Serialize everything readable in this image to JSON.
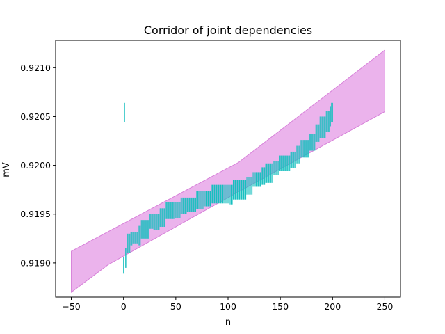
{
  "chart_data": {
    "type": "area",
    "title": "Corridor of joint dependencies",
    "xlabel": "n",
    "ylabel": "mV",
    "xlim": [
      -65,
      265
    ],
    "ylim": [
      0.91865,
      0.92128
    ],
    "xticks": [
      -50,
      0,
      50,
      100,
      150,
      200,
      250
    ],
    "yticks": [
      0.919,
      0.9195,
      0.92,
      0.9205,
      0.921
    ],
    "ytick_labels": [
      "0.9190",
      "0.9195",
      "0.9200",
      "0.9205",
      "0.9210"
    ],
    "grid": false,
    "corridor": {
      "color": "#ebb3ec",
      "edge_color": "#d67fd8",
      "upper": [
        [
          -50,
          0.91912
        ],
        [
          110,
          0.92003
        ],
        [
          250,
          0.92118
        ]
      ],
      "lower": [
        [
          -50,
          0.9187
        ],
        [
          -15,
          0.91898
        ],
        [
          100,
          0.91967
        ],
        [
          250,
          0.92055
        ]
      ]
    },
    "segments": {
      "color": "#17bfbf",
      "x_start": 0,
      "x_end": 200,
      "step": 1,
      "steps": [
        [
          0,
          1,
          0.91889,
          0.91906
        ],
        [
          2,
          4,
          0.91895,
          0.91915
        ],
        [
          4,
          7,
          0.9191,
          0.9193
        ],
        [
          7,
          9,
          0.91918,
          0.91932
        ],
        [
          9,
          14,
          0.9192,
          0.91932
        ],
        [
          14,
          17,
          0.91918,
          0.91938
        ],
        [
          17,
          25,
          0.91925,
          0.91944
        ],
        [
          25,
          29,
          0.91935,
          0.9195
        ],
        [
          29,
          35,
          0.91934,
          0.9195
        ],
        [
          35,
          40,
          0.91937,
          0.91956
        ],
        [
          40,
          46,
          0.91945,
          0.91962
        ],
        [
          46,
          50,
          0.91945,
          0.91962
        ],
        [
          50,
          55,
          0.91946,
          0.91962
        ],
        [
          55,
          61,
          0.9195,
          0.91967
        ],
        [
          61,
          70,
          0.91952,
          0.91967
        ],
        [
          70,
          77,
          0.91955,
          0.91974
        ],
        [
          77,
          84,
          0.91958,
          0.91974
        ],
        [
          84,
          102,
          0.91961,
          0.9198
        ],
        [
          102,
          105,
          0.9196,
          0.9198
        ],
        [
          105,
          118,
          0.91965,
          0.91985
        ],
        [
          118,
          124,
          0.9197,
          0.91988
        ],
        [
          124,
          132,
          0.91978,
          0.91993
        ],
        [
          132,
          136,
          0.9198,
          0.91998
        ],
        [
          136,
          143,
          0.91982,
          0.92002
        ],
        [
          143,
          149,
          0.9199,
          0.92004
        ],
        [
          149,
          160,
          0.91994,
          0.9201
        ],
        [
          160,
          165,
          0.91997,
          0.92014
        ],
        [
          165,
          169,
          0.92002,
          0.9202
        ],
        [
          169,
          178,
          0.92008,
          0.92026
        ],
        [
          178,
          184,
          0.92015,
          0.92032
        ],
        [
          184,
          188,
          0.92024,
          0.92042
        ],
        [
          188,
          194,
          0.92028,
          0.9205
        ],
        [
          194,
          198,
          0.92034,
          0.92056
        ],
        [
          198,
          199,
          0.9204,
          0.9206
        ],
        [
          199,
          200,
          0.92044,
          0.92064
        ]
      ]
    }
  }
}
